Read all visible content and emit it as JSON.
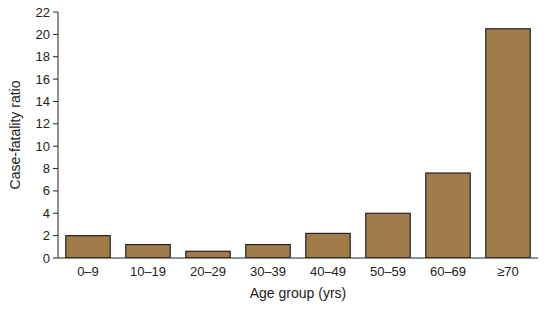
{
  "chart_data": {
    "type": "bar",
    "x_label": "Age group (yrs)",
    "y_label": "Case-fatality ratio",
    "categories": [
      "0–9",
      "10–19",
      "20–29",
      "30–39",
      "40–49",
      "50–59",
      "60–69",
      "≥70"
    ],
    "values": [
      2.0,
      1.2,
      0.6,
      1.2,
      2.2,
      4.0,
      7.6,
      20.5
    ],
    "color": "#a07c4a",
    "ylim": [
      0,
      22
    ],
    "yticks": [
      0,
      2,
      4,
      6,
      8,
      10,
      12,
      14,
      16,
      18,
      20,
      22
    ],
    "grid": false
  }
}
